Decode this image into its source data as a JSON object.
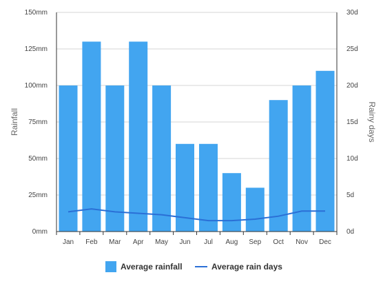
{
  "chart_data": {
    "type": "bar",
    "categories": [
      "Jan",
      "Feb",
      "Mar",
      "Apr",
      "May",
      "Jun",
      "Jul",
      "Aug",
      "Sep",
      "Oct",
      "Nov",
      "Dec"
    ],
    "series": [
      {
        "name": "Average rainfall",
        "type": "bar",
        "axis": "left",
        "color": "#42a5f0",
        "values": [
          100,
          130,
          100,
          130,
          100,
          60,
          60,
          40,
          30,
          90,
          100,
          110
        ]
      },
      {
        "name": "Average rain days",
        "type": "line",
        "axis": "right",
        "color": "#2a6fd6",
        "values": [
          2.7,
          3.1,
          2.7,
          2.5,
          2.3,
          1.9,
          1.5,
          1.5,
          1.7,
          2.1,
          2.8,
          2.8
        ]
      }
    ],
    "ylabel": "Rainfall",
    "y2label": "Rainy days",
    "ylim": [
      0,
      150
    ],
    "y2lim": [
      0,
      30
    ],
    "yticks": [
      "0mm",
      "25mm",
      "50mm",
      "75mm",
      "100mm",
      "125mm",
      "150mm"
    ],
    "y2ticks": [
      "0d",
      "5d",
      "10d",
      "15d",
      "20d",
      "25d",
      "30d"
    ],
    "grid": true,
    "legend_position": "bottom"
  }
}
